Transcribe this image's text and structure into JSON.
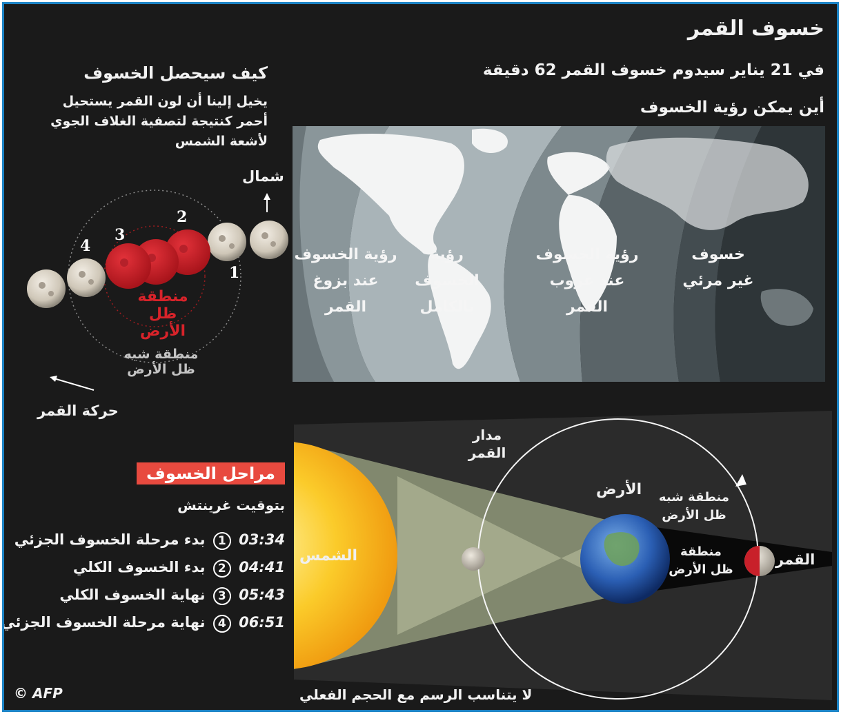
{
  "header": {
    "title": "خسوف القمر",
    "subtitle": "في 21 يناير سيدوم خسوف القمر 62 دقيقة",
    "where_title": "أين يمكن رؤية الخسوف"
  },
  "how": {
    "title": "كيف سيحصل الخسوف",
    "desc_line1": "يخيل إلينا أن لون القمر يستحيل",
    "desc_line2": "أحمر كنتيجة لتصفية الغلاف الجوي",
    "desc_line3": "لأشعة الشمس",
    "north_label": "شمال",
    "umbra_label_line1": "منطقة ظل",
    "umbra_label_line2": "الأرض",
    "penumbra_label_line1": "منطقة شبه",
    "penumbra_label_line2": "ظل الأرض",
    "moon_motion_label": "حركة القمر",
    "positions": [
      "1",
      "2",
      "3",
      "4"
    ]
  },
  "map": {
    "zones": [
      {
        "label": "رؤية الخسوف عند بزوغ القمر"
      },
      {
        "label": "رؤية الخسوف بالكامل"
      },
      {
        "label": "رؤية الخسوف عند غروب القمر"
      },
      {
        "label": "خسوف غير مرئي"
      }
    ]
  },
  "stages": {
    "title": "مراحل الخسوف",
    "timezone": "بتوقيت غرينتش",
    "items": [
      {
        "num": "1",
        "time": "03:34",
        "label": "بدء مرحلة الخسوف الجزئي"
      },
      {
        "num": "2",
        "time": "04:41",
        "label": "بدء الخسوف الكلي"
      },
      {
        "num": "3",
        "time": "05:43",
        "label": "نهاية الخسوف الكلي"
      },
      {
        "num": "4",
        "time": "06:51",
        "label": "نهاية مرحلة الخسوف الجزئي"
      }
    ]
  },
  "geometry": {
    "sun_label": "الشمس",
    "orbit_label_line1": "مدار",
    "orbit_label_line2": "القمر",
    "earth_label": "الأرض",
    "penumbra_line1": "منطقة شبه",
    "penumbra_line2": "ظل الأرض",
    "umbra_line1": "منطقة",
    "umbra_line2": "ظل الأرض",
    "moon_label": "القمر",
    "note": "لا يتناسب الرسم مع الحجم الفعلي"
  },
  "credit": "© AFP",
  "colors": {
    "background": "#1a1a1a",
    "border": "#1c84c6",
    "eclipse_red": "#d8232a",
    "stage_title_bg": "#e84a3f",
    "sun": "#f6b417"
  }
}
